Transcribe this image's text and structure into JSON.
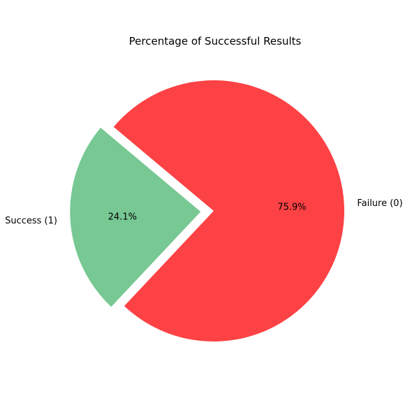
{
  "chart_data": {
    "type": "pie",
    "title": "Percentage of Successful Results",
    "slices": [
      {
        "label": "Success (1)",
        "value": 24.1,
        "pct_label": "24.1%",
        "color": "#77c893",
        "exploded": true
      },
      {
        "label": "Failure (0)",
        "value": 75.9,
        "pct_label": "75.9%",
        "color": "#fc4245",
        "exploded": false
      }
    ]
  }
}
